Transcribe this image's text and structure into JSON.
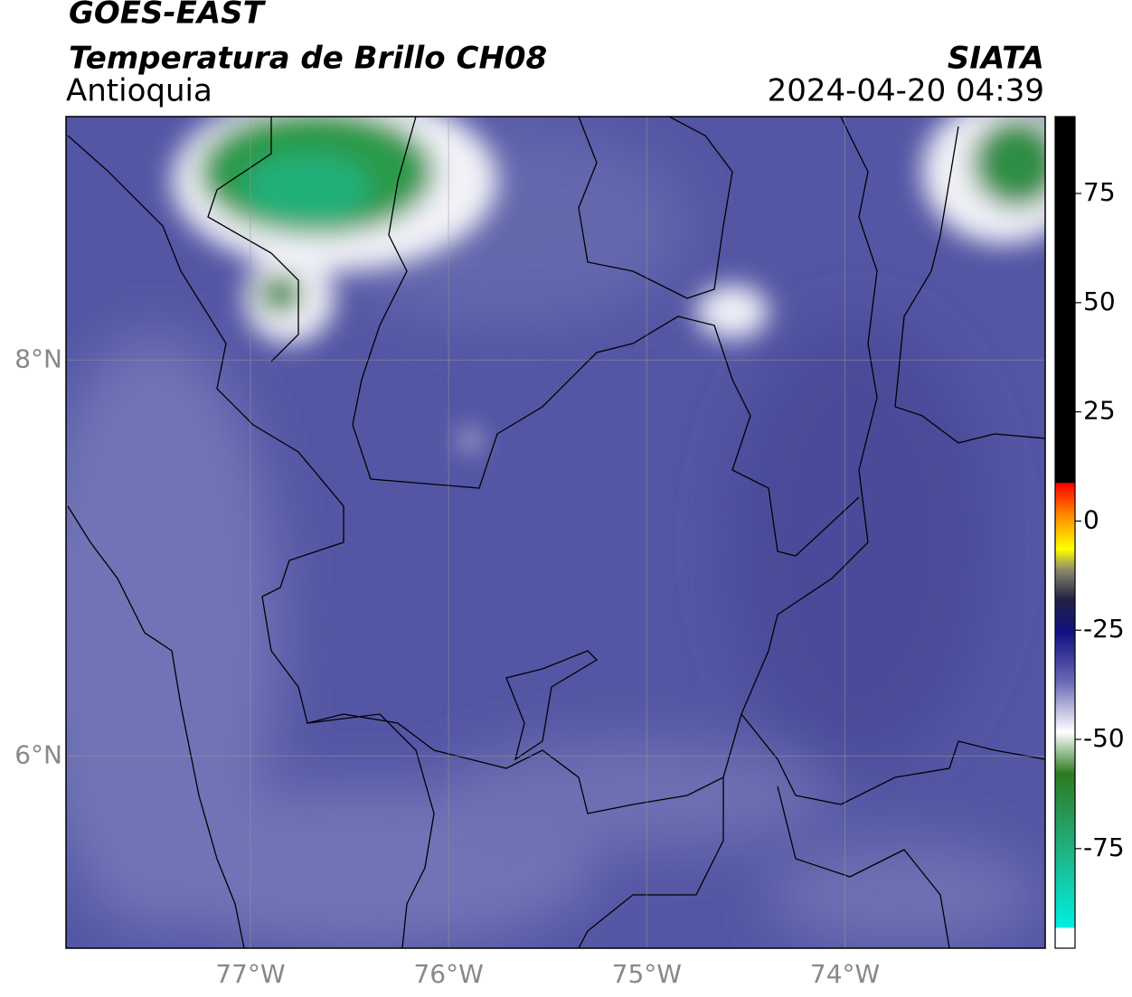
{
  "header": {
    "satellite": "GOES-EAST",
    "title": "Temperatura de Brillo CH08",
    "source": "SIATA",
    "region": "Antioquia",
    "datetime": "2024-04-20 04:39"
  },
  "map": {
    "xlim": [
      -77.93,
      -72.99
    ],
    "ylim": [
      5.03,
      9.23
    ],
    "xticks": [
      {
        "value": -77,
        "label": "77°W"
      },
      {
        "value": -76,
        "label": "76°W"
      },
      {
        "value": -75,
        "label": "75°W"
      },
      {
        "value": -74,
        "label": "74°W"
      }
    ],
    "yticks": [
      {
        "value": 8,
        "label": "8°N"
      },
      {
        "value": 6,
        "label": "6°N"
      }
    ],
    "grid": true
  },
  "colorbar": {
    "lim": [
      -97.8,
      92.6
    ],
    "ticks": [
      75,
      50,
      25,
      0,
      -25,
      -50,
      -75
    ]
  }
}
